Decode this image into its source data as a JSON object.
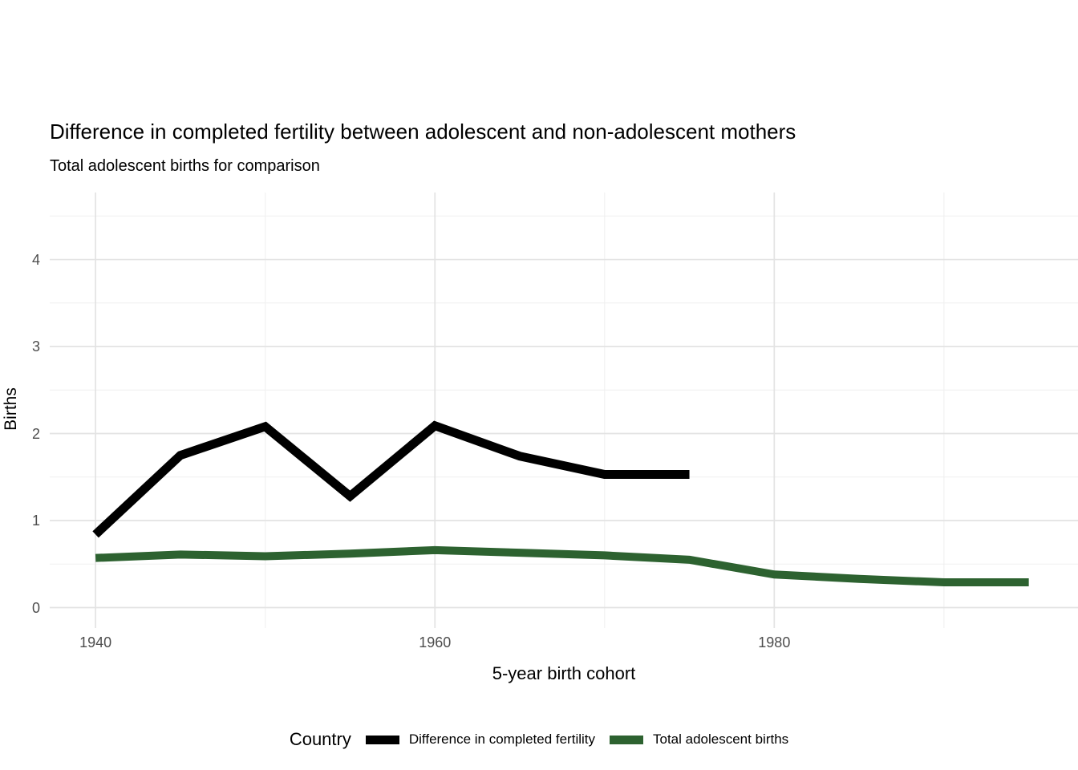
{
  "chart_data": {
    "type": "line",
    "title": "Difference in completed fertility between adolescent and non-adolescent mothers",
    "subtitle": "Total adolescent births for comparison",
    "xlabel": "5-year birth cohort",
    "ylabel": "Births",
    "legend_title": "Country",
    "legend_position": "bottom",
    "grid": true,
    "xlim": [
      1937.3,
      1997.9
    ],
    "ylim": [
      -0.235,
      4.77
    ],
    "x_major_ticks": [
      1940,
      1960,
      1980
    ],
    "x_minor_ticks": [
      1950,
      1970,
      1990
    ],
    "y_major_ticks": [
      0,
      1,
      2,
      3,
      4
    ],
    "y_minor_ticks": [
      0.5,
      1.5,
      2.5,
      3.5,
      4.5
    ],
    "colors": {
      "grid_major": "#e3e3e3",
      "grid_minor": "#efefef",
      "tick_label": "#4d4d4d"
    },
    "series": [
      {
        "name": "Difference in completed fertility",
        "color": "#000000",
        "line_width": 11,
        "x": [
          1940,
          1945,
          1950,
          1955,
          1960,
          1965,
          1970,
          1975
        ],
        "values": [
          0.84,
          1.75,
          2.08,
          1.28,
          2.09,
          1.74,
          1.53,
          1.53
        ]
      },
      {
        "name": "Total adolescent births",
        "color": "#2d6230",
        "line_width": 10,
        "x": [
          1940,
          1945,
          1950,
          1955,
          1960,
          1965,
          1970,
          1975,
          1980,
          1985,
          1990,
          1995
        ],
        "values": [
          0.57,
          0.61,
          0.59,
          0.62,
          0.66,
          0.63,
          0.6,
          0.55,
          0.38,
          0.33,
          0.29,
          0.29
        ]
      }
    ]
  }
}
